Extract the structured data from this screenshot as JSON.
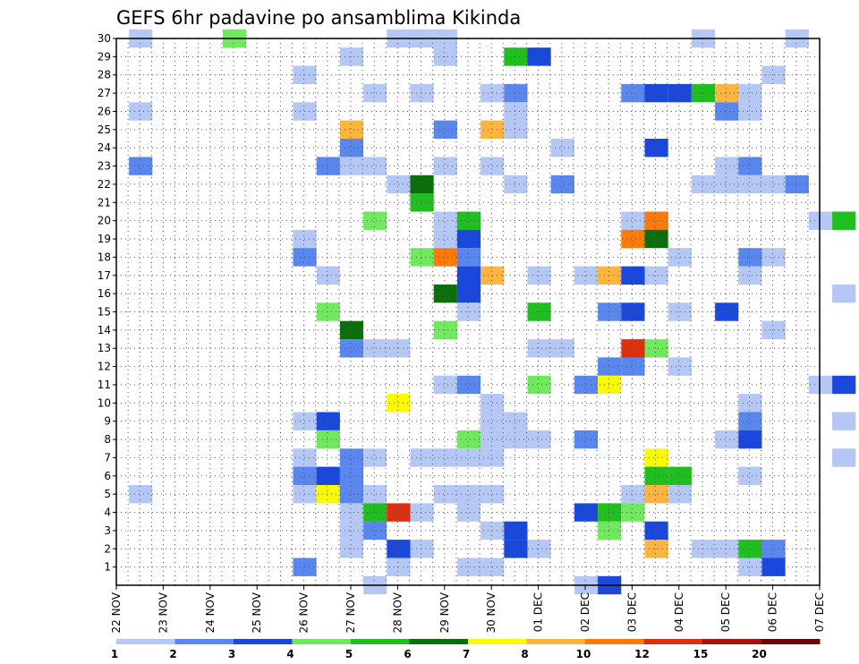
{
  "chart_data": {
    "type": "heatmap",
    "title": "GEFS 6hr padavine po ansamblima Kikinda",
    "xlabel": "",
    "ylabel": "",
    "x_ticks": [
      "22 NOV",
      "23 NOV",
      "24 NOV",
      "25 NOV",
      "26 NOV",
      "27 NOV",
      "28 NOV",
      "29 NOV",
      "30 NOV",
      "01 DEC",
      "02 DEC",
      "03 DEC",
      "04 DEC",
      "05 DEC",
      "06 DEC",
      "07 DEC"
    ],
    "y_ticks": [
      1,
      2,
      3,
      4,
      5,
      6,
      7,
      8,
      9,
      10,
      11,
      12,
      13,
      14,
      15,
      16,
      17,
      18,
      19,
      20,
      21,
      22,
      23,
      24,
      25,
      26,
      27,
      28,
      29,
      30
    ],
    "steps_per_day": 4,
    "x_range": [
      0,
      60
    ],
    "y_range": [
      0,
      30
    ],
    "grid": true,
    "legend": {
      "placement": "bottom",
      "levels": [
        "1",
        "2",
        "3",
        "4",
        "5",
        "6",
        "7",
        "8",
        "10",
        "12",
        "15",
        "20"
      ],
      "colors": [
        "#b4c7f5",
        "#5a87ee",
        "#1b48dc",
        "#71e95e",
        "#1fbf1f",
        "#0a6e0a",
        "#fafa00",
        "#fdb53f",
        "#fb7a0a",
        "#de2f10",
        "#a8120e",
        "#6a0808"
      ]
    },
    "cells": [
      [
        1,
        30,
        0
      ],
      [
        5,
        30,
        3
      ],
      [
        12,
        30,
        0
      ],
      [
        13,
        30,
        0
      ],
      [
        14,
        30,
        0
      ],
      [
        25,
        30,
        0
      ],
      [
        29,
        30,
        0
      ],
      [
        10,
        29,
        0
      ],
      [
        14,
        29,
        0
      ],
      [
        17,
        29,
        4
      ],
      [
        18,
        29,
        2
      ],
      [
        8,
        28,
        0
      ],
      [
        28,
        28,
        0
      ],
      [
        11,
        27,
        0
      ],
      [
        13,
        27,
        0
      ],
      [
        16,
        27,
        0
      ],
      [
        17,
        27,
        1
      ],
      [
        22,
        27,
        1
      ],
      [
        23,
        27,
        2
      ],
      [
        24,
        27,
        2
      ],
      [
        25,
        27,
        4
      ],
      [
        26,
        27,
        7
      ],
      [
        27,
        27,
        0
      ],
      [
        1,
        26,
        0
      ],
      [
        8,
        26,
        0
      ],
      [
        17,
        26,
        0
      ],
      [
        26,
        26,
        1
      ],
      [
        27,
        26,
        0
      ],
      [
        10,
        25,
        7
      ],
      [
        14,
        25,
        1
      ],
      [
        16,
        25,
        7
      ],
      [
        17,
        25,
        0
      ],
      [
        10,
        24,
        1
      ],
      [
        19,
        24,
        0
      ],
      [
        23,
        24,
        2
      ],
      [
        1,
        23,
        1
      ],
      [
        9,
        23,
        1
      ],
      [
        10,
        23,
        0
      ],
      [
        11,
        23,
        0
      ],
      [
        14,
        23,
        0
      ],
      [
        16,
        23,
        0
      ],
      [
        26,
        23,
        0
      ],
      [
        27,
        23,
        1
      ],
      [
        12,
        22,
        0
      ],
      [
        13,
        22,
        5
      ],
      [
        17,
        22,
        0
      ],
      [
        19,
        22,
        1
      ],
      [
        25,
        22,
        0
      ],
      [
        26,
        22,
        0
      ],
      [
        27,
        22,
        0
      ],
      [
        28,
        22,
        0
      ],
      [
        29,
        22,
        1
      ],
      [
        13,
        21,
        4
      ],
      [
        11,
        20,
        3
      ],
      [
        14,
        20,
        0
      ],
      [
        15,
        20,
        4
      ],
      [
        22,
        20,
        0
      ],
      [
        23,
        20,
        8
      ],
      [
        30,
        20,
        0
      ],
      [
        31,
        20,
        4
      ],
      [
        8,
        19,
        0
      ],
      [
        14,
        19,
        0
      ],
      [
        15,
        19,
        2
      ],
      [
        22,
        19,
        8
      ],
      [
        23,
        19,
        5
      ],
      [
        8,
        18,
        1
      ],
      [
        13,
        18,
        3
      ],
      [
        14,
        18,
        8
      ],
      [
        15,
        18,
        1
      ],
      [
        24,
        18,
        0
      ],
      [
        27,
        18,
        1
      ],
      [
        28,
        18,
        0
      ],
      [
        9,
        17,
        0
      ],
      [
        15,
        17,
        2
      ],
      [
        16,
        17,
        7
      ],
      [
        18,
        17,
        0
      ],
      [
        20,
        17,
        0
      ],
      [
        21,
        17,
        7
      ],
      [
        22,
        17,
        2
      ],
      [
        23,
        17,
        0
      ],
      [
        27,
        17,
        0
      ],
      [
        14,
        16,
        5
      ],
      [
        15,
        16,
        2
      ],
      [
        31,
        16,
        0
      ],
      [
        9,
        15,
        3
      ],
      [
        15,
        15,
        0
      ],
      [
        18,
        15,
        4
      ],
      [
        21,
        15,
        1
      ],
      [
        22,
        15,
        2
      ],
      [
        24,
        15,
        0
      ],
      [
        26,
        15,
        2
      ],
      [
        10,
        14,
        5
      ],
      [
        14,
        14,
        3
      ],
      [
        28,
        14,
        0
      ],
      [
        10,
        13,
        1
      ],
      [
        11,
        13,
        0
      ],
      [
        12,
        13,
        0
      ],
      [
        18,
        13,
        0
      ],
      [
        19,
        13,
        0
      ],
      [
        22,
        13,
        9
      ],
      [
        23,
        13,
        3
      ],
      [
        21,
        12,
        1
      ],
      [
        22,
        12,
        1
      ],
      [
        24,
        12,
        0
      ],
      [
        14,
        11,
        0
      ],
      [
        15,
        11,
        1
      ],
      [
        18,
        11,
        3
      ],
      [
        20,
        11,
        1
      ],
      [
        21,
        11,
        6
      ],
      [
        30,
        11,
        0
      ],
      [
        31,
        11,
        2
      ],
      [
        12,
        10,
        6
      ],
      [
        16,
        10,
        0
      ],
      [
        27,
        10,
        0
      ],
      [
        8,
        9,
        0
      ],
      [
        9,
        9,
        2
      ],
      [
        16,
        9,
        0
      ],
      [
        17,
        9,
        0
      ],
      [
        27,
        9,
        1
      ],
      [
        31,
        9,
        0
      ],
      [
        9,
        8,
        3
      ],
      [
        15,
        8,
        3
      ],
      [
        16,
        8,
        0
      ],
      [
        17,
        8,
        0
      ],
      [
        18,
        8,
        0
      ],
      [
        20,
        8,
        1
      ],
      [
        26,
        8,
        0
      ],
      [
        27,
        8,
        2
      ],
      [
        8,
        7,
        0
      ],
      [
        10,
        7,
        1
      ],
      [
        11,
        7,
        0
      ],
      [
        13,
        7,
        0
      ],
      [
        14,
        7,
        0
      ],
      [
        15,
        7,
        0
      ],
      [
        16,
        7,
        0
      ],
      [
        23,
        7,
        6
      ],
      [
        31,
        7,
        0
      ],
      [
        8,
        6,
        1
      ],
      [
        9,
        6,
        2
      ],
      [
        10,
        6,
        1
      ],
      [
        23,
        6,
        4
      ],
      [
        24,
        6,
        4
      ],
      [
        27,
        6,
        0
      ],
      [
        1,
        5,
        0
      ],
      [
        8,
        5,
        0
      ],
      [
        9,
        5,
        6
      ],
      [
        10,
        5,
        1
      ],
      [
        11,
        5,
        0
      ],
      [
        14,
        5,
        0
      ],
      [
        15,
        5,
        0
      ],
      [
        16,
        5,
        0
      ],
      [
        22,
        5,
        0
      ],
      [
        23,
        5,
        7
      ],
      [
        24,
        5,
        0
      ],
      [
        10,
        4,
        0
      ],
      [
        11,
        4,
        4
      ],
      [
        12,
        4,
        9
      ],
      [
        13,
        4,
        0
      ],
      [
        15,
        4,
        0
      ],
      [
        20,
        4,
        2
      ],
      [
        21,
        4,
        4
      ],
      [
        22,
        4,
        3
      ],
      [
        10,
        3,
        0
      ],
      [
        11,
        3,
        1
      ],
      [
        16,
        3,
        0
      ],
      [
        17,
        3,
        2
      ],
      [
        21,
        3,
        3
      ],
      [
        23,
        3,
        2
      ],
      [
        10,
        2,
        0
      ],
      [
        12,
        2,
        2
      ],
      [
        13,
        2,
        0
      ],
      [
        17,
        2,
        2
      ],
      [
        18,
        2,
        0
      ],
      [
        23,
        2,
        7
      ],
      [
        25,
        2,
        0
      ],
      [
        26,
        2,
        0
      ],
      [
        27,
        2,
        4
      ],
      [
        28,
        2,
        1
      ],
      [
        8,
        1,
        1
      ],
      [
        12,
        1,
        0
      ],
      [
        15,
        1,
        0
      ],
      [
        16,
        1,
        0
      ],
      [
        27,
        1,
        0
      ],
      [
        28,
        1,
        2
      ],
      [
        11,
        0,
        0
      ],
      [
        20,
        0,
        0
      ],
      [
        21,
        0,
        2
      ]
    ]
  }
}
